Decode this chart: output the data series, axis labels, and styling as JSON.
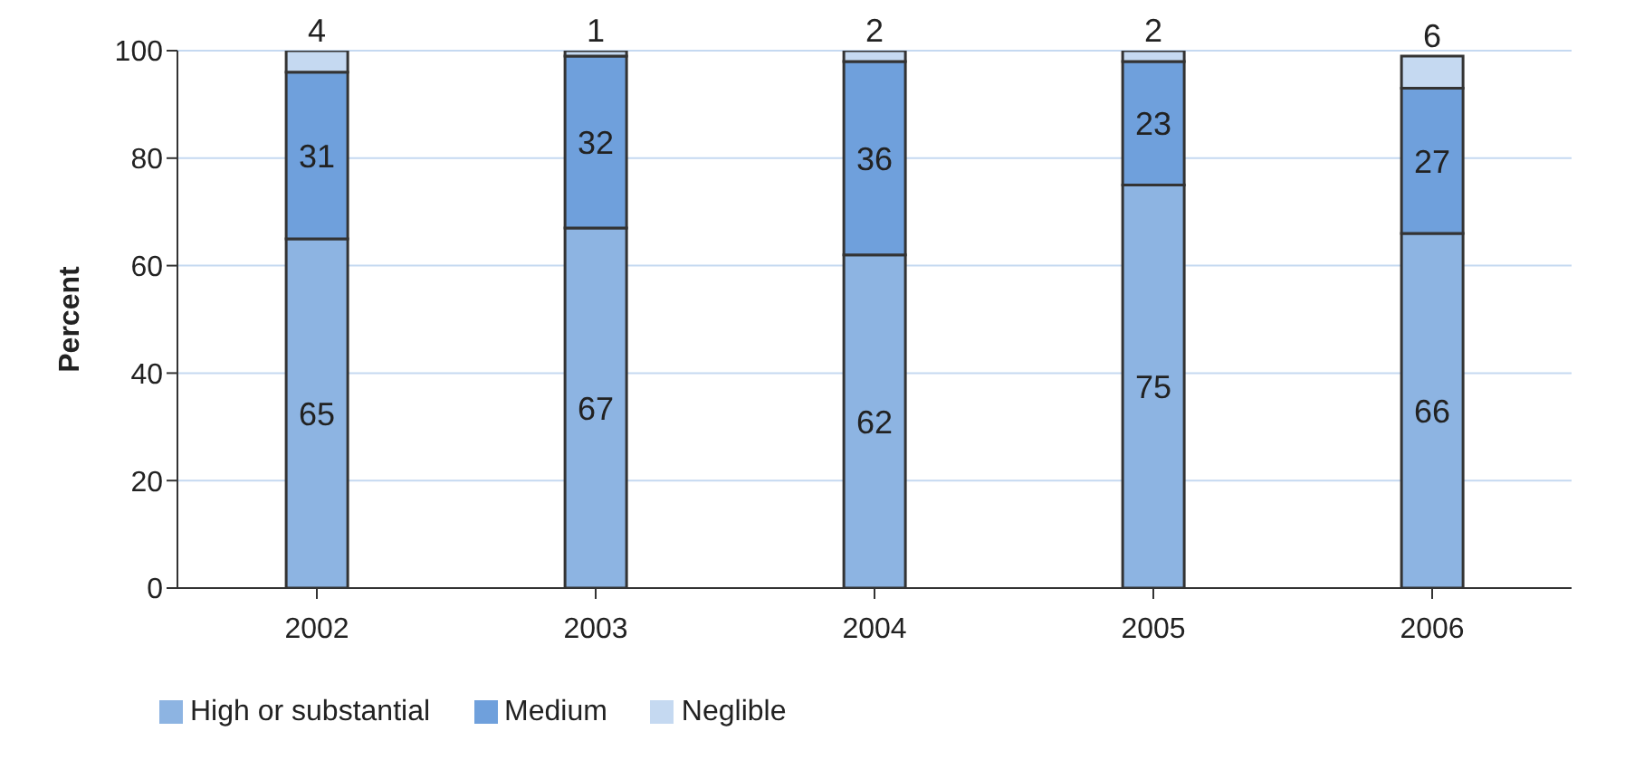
{
  "chart_data": {
    "type": "bar",
    "stacked": true,
    "ylabel": "Percent",
    "categories": [
      "2002",
      "2003",
      "2004",
      "2005",
      "2006"
    ],
    "series": [
      {
        "name": "High or substantial",
        "color": "#8db4e2",
        "values": [
          65,
          67,
          62,
          75,
          66
        ]
      },
      {
        "name": "Medium",
        "color": "#6fa0dc",
        "values": [
          31,
          32,
          36,
          23,
          27
        ]
      },
      {
        "name": "Neglible",
        "color": "#c5d9f1",
        "values": [
          4,
          1,
          2,
          2,
          6
        ]
      }
    ],
    "ylim": [
      0,
      100
    ],
    "yticks": [
      0,
      20,
      40,
      60,
      80,
      100
    ],
    "grid": "y",
    "legend": "bottom left",
    "data_labels": true
  }
}
